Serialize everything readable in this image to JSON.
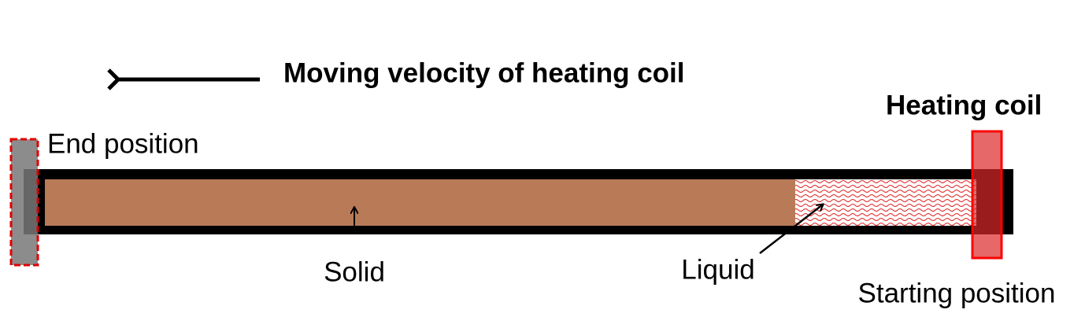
{
  "title": "Moving velocity of heating coil",
  "labels": {
    "heating_coil": "Heating coil",
    "end_position": "End position",
    "solid": "Solid",
    "liquid": "Liquid",
    "starting_position": "Starting position"
  }
}
